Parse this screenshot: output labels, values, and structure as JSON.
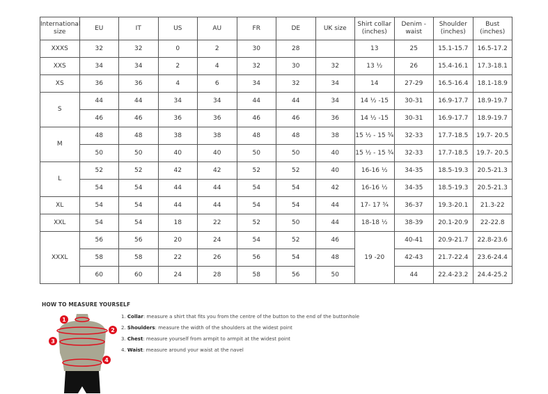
{
  "table": {
    "headers": [
      "International size",
      "EU",
      "IT",
      "US",
      "AU",
      "FR",
      "DE",
      "UK size",
      "Shirt collar (inches)",
      "Denim - waist",
      "Shoulder (inches)",
      "Bust (inches)"
    ],
    "rows": [
      [
        "XXXS",
        "32",
        "32",
        "0",
        "2",
        "30",
        "28",
        "",
        "13",
        "25",
        "15.1-15.7",
        "16.5-17.2"
      ],
      [
        "XXS",
        "34",
        "34",
        "2",
        "4",
        "32",
        "30",
        "32",
        "13 ½",
        "26",
        "15.4-16.1",
        "17.3-18.1"
      ],
      [
        "XS",
        "36",
        "36",
        "4",
        "6",
        "34",
        "32",
        "34",
        "14",
        "27-29",
        "16.5-16.4",
        "18.1-18.9"
      ],
      [
        "S",
        "44",
        "44",
        "34",
        "34",
        "44",
        "44",
        "34",
        "14 ½ -15",
        "30-31",
        "16.9-17.7",
        "18.9-19.7"
      ],
      [
        null,
        "46",
        "46",
        "36",
        "36",
        "46",
        "46",
        "36",
        "14 ½ -15",
        "30-31",
        "16.9-17.7",
        "18.9-19.7"
      ],
      [
        "M",
        "48",
        "48",
        "38",
        "38",
        "48",
        "48",
        "38",
        "15 ½ - 15 ¾",
        "32-33",
        "17.7-18.5",
        "19.7- 20.5"
      ],
      [
        null,
        "50",
        "50",
        "40",
        "40",
        "50",
        "50",
        "40",
        "15 ½ - 15 ¾",
        "32-33",
        "17.7-18.5",
        "19.7- 20.5"
      ],
      [
        "L",
        "52",
        "52",
        "42",
        "42",
        "52",
        "52",
        "40",
        "16-16 ½",
        "34-35",
        "18.5-19.3",
        "20.5-21.3"
      ],
      [
        null,
        "54",
        "54",
        "44",
        "44",
        "54",
        "54",
        "42",
        "16-16 ½",
        "34-35",
        "18.5-19.3",
        "20.5-21.3"
      ],
      [
        "XL",
        "54",
        "54",
        "44",
        "44",
        "54",
        "54",
        "44",
        "17- 17 ¾",
        "36-37",
        "19.3-20.1",
        "21.3-22"
      ],
      [
        "XXL",
        "54",
        "54",
        "18",
        "22",
        "52",
        "50",
        "44",
        "18-18 ½",
        "38-39",
        "20.1-20.9",
        "22-22.8"
      ],
      [
        "XXXL",
        "56",
        "56",
        "20",
        "24",
        "54",
        "52",
        "46",
        "19 -20",
        "40-41",
        "20.9-21.7",
        "22.8-23.6"
      ],
      [
        null,
        "58",
        "58",
        "22",
        "26",
        "56",
        "54",
        "48",
        null,
        "42-43",
        "21.7-22.4",
        "23.6-24.4"
      ],
      [
        null,
        "60",
        "60",
        "24",
        "28",
        "58",
        "56",
        "50",
        null,
        "44",
        "22.4-23.2",
        "24.4-25.2"
      ]
    ]
  },
  "guide": {
    "title": "HOW TO MEASURE YOURSELF",
    "steps": [
      {
        "num": "1.",
        "term": "Collar",
        "text": ": measure a shirt that fits you from the centre of the button to the end of the buttonhole"
      },
      {
        "num": "2.",
        "term": "Shoulders",
        "text": ": measure the width of the shoulders at the widest point"
      },
      {
        "num": "3.",
        "term": "Chest",
        "text": ": measure yourself from armpit to armpit at the widest point"
      },
      {
        "num": "4.",
        "term": "Waist",
        "text": ": measure around your waist at the navel"
      }
    ],
    "markers": [
      "1",
      "2",
      "3",
      "4"
    ],
    "colors": {
      "marker": "#e0101e",
      "torso": "#a9a793",
      "shorts": "#111111"
    }
  }
}
